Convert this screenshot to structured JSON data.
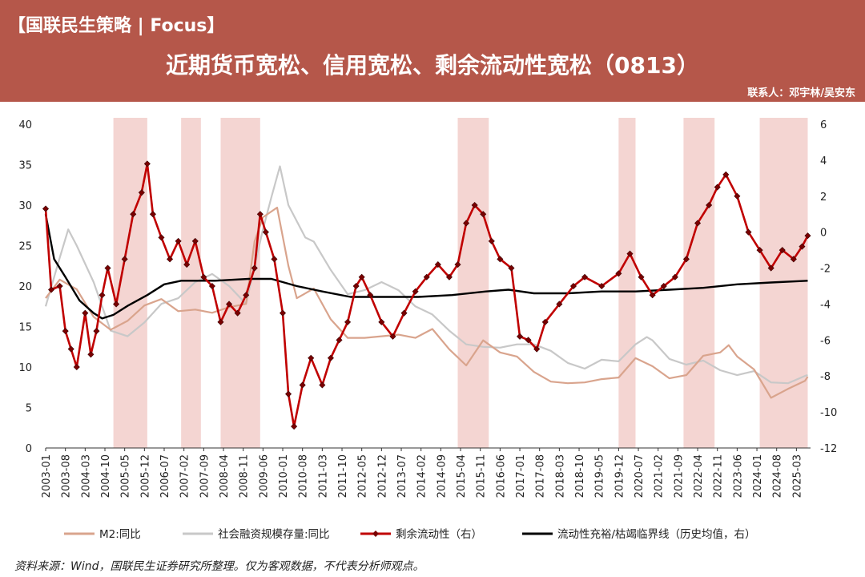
{
  "header": {
    "brand": "【国联民生策略 | Focus】",
    "title": "近期货币宽松、信用宽松、剩余流动性宽松（0813）",
    "contact": "联系人：邓宇林/吴安东"
  },
  "source_note": "资料来源：Wind，国联民生证券研究所整理。仅为客观数据，不代表分析师观点。",
  "colors": {
    "header_bg": "#b5574a",
    "m2": "#d9a48d",
    "social_financing": "#c8c8c8",
    "surplus_liquidity": "#c00000",
    "threshold": "#000000",
    "shade": "#f4d5d2"
  },
  "chart_data": {
    "type": "line",
    "x_tick_labels": [
      "2003-01",
      "2003-08",
      "2004-03",
      "2004-10",
      "2005-05",
      "2005-12",
      "2006-07",
      "2007-02",
      "2007-09",
      "2008-04",
      "2008-11",
      "2009-06",
      "2010-01",
      "2010-08",
      "2011-03",
      "2011-10",
      "2012-05",
      "2012-12",
      "2013-07",
      "2014-02",
      "2014-09",
      "2015-04",
      "2015-11",
      "2016-06",
      "2017-01",
      "2017-08",
      "2018-03",
      "2018-10",
      "2019-05",
      "2019-12",
      "2020-07",
      "2021-02",
      "2021-09",
      "2022-04",
      "2022-11",
      "2023-06",
      "2024-01",
      "2024-08",
      "2025-03"
    ],
    "y_left": {
      "min": 0,
      "max": 40,
      "ticks": [
        0,
        5,
        10,
        15,
        20,
        25,
        30,
        35,
        40
      ]
    },
    "y_right": {
      "min": -12,
      "max": 6,
      "ticks": [
        -12,
        -10,
        -8,
        -6,
        -4,
        -2,
        0,
        2,
        4,
        6
      ]
    },
    "shaded_periods": [
      [
        "2005-01",
        "2006-01"
      ],
      [
        "2007-01",
        "2007-08"
      ],
      [
        "2008-03",
        "2009-05"
      ],
      [
        "2015-03",
        "2016-02"
      ],
      [
        "2019-12",
        "2020-06"
      ],
      [
        "2021-11",
        "2022-10"
      ],
      [
        "2024-02",
        "2025-07"
      ]
    ],
    "series": [
      {
        "name": "M2:同比",
        "axis": "left",
        "points": [
          [
            "2003-01",
            18.5
          ],
          [
            "2003-06",
            20.8
          ],
          [
            "2003-12",
            19.6
          ],
          [
            "2004-06",
            16.2
          ],
          [
            "2004-12",
            14.6
          ],
          [
            "2005-06",
            15.7
          ],
          [
            "2005-12",
            17.6
          ],
          [
            "2006-06",
            18.4
          ],
          [
            "2006-12",
            16.9
          ],
          [
            "2007-06",
            17.1
          ],
          [
            "2007-12",
            16.7
          ],
          [
            "2008-06",
            17.4
          ],
          [
            "2008-12",
            17.8
          ],
          [
            "2009-03",
            25.5
          ],
          [
            "2009-06",
            28.5
          ],
          [
            "2009-11",
            29.7
          ],
          [
            "2010-03",
            22.5
          ],
          [
            "2010-06",
            18.5
          ],
          [
            "2010-12",
            19.7
          ],
          [
            "2011-06",
            15.9
          ],
          [
            "2011-12",
            13.6
          ],
          [
            "2012-06",
            13.6
          ],
          [
            "2012-12",
            13.8
          ],
          [
            "2013-06",
            14.0
          ],
          [
            "2013-12",
            13.6
          ],
          [
            "2014-06",
            14.7
          ],
          [
            "2014-12",
            12.2
          ],
          [
            "2015-06",
            10.2
          ],
          [
            "2015-12",
            13.3
          ],
          [
            "2016-06",
            11.8
          ],
          [
            "2016-12",
            11.3
          ],
          [
            "2017-06",
            9.4
          ],
          [
            "2017-12",
            8.2
          ],
          [
            "2018-06",
            8.0
          ],
          [
            "2018-12",
            8.1
          ],
          [
            "2019-06",
            8.5
          ],
          [
            "2019-12",
            8.7
          ],
          [
            "2020-06",
            11.1
          ],
          [
            "2020-12",
            10.1
          ],
          [
            "2021-06",
            8.6
          ],
          [
            "2021-12",
            9.0
          ],
          [
            "2022-06",
            11.4
          ],
          [
            "2022-12",
            11.8
          ],
          [
            "2023-03",
            12.7
          ],
          [
            "2023-06",
            11.3
          ],
          [
            "2023-12",
            9.7
          ],
          [
            "2024-06",
            6.2
          ],
          [
            "2024-12",
            7.3
          ],
          [
            "2025-06",
            8.3
          ],
          [
            "2025-07",
            8.8
          ]
        ]
      },
      {
        "name": "社会融资规模存量:同比",
        "axis": "left",
        "points": [
          [
            "2003-01",
            17.5
          ],
          [
            "2003-06",
            23.5
          ],
          [
            "2003-09",
            27.0
          ],
          [
            "2003-12",
            25.0
          ],
          [
            "2004-06",
            20.5
          ],
          [
            "2004-12",
            14.5
          ],
          [
            "2005-06",
            13.8
          ],
          [
            "2005-12",
            15.5
          ],
          [
            "2006-06",
            17.8
          ],
          [
            "2006-12",
            18.5
          ],
          [
            "2007-06",
            20.5
          ],
          [
            "2007-12",
            21.5
          ],
          [
            "2008-06",
            20.0
          ],
          [
            "2008-12",
            17.8
          ],
          [
            "2009-06",
            27.0
          ],
          [
            "2009-09",
            31.0
          ],
          [
            "2009-12",
            34.8
          ],
          [
            "2010-03",
            30.0
          ],
          [
            "2010-09",
            26.0
          ],
          [
            "2010-12",
            25.5
          ],
          [
            "2011-06",
            22.0
          ],
          [
            "2011-12",
            19.0
          ],
          [
            "2012-06",
            19.5
          ],
          [
            "2012-12",
            20.5
          ],
          [
            "2013-06",
            19.5
          ],
          [
            "2013-12",
            17.5
          ],
          [
            "2014-06",
            16.5
          ],
          [
            "2014-12",
            14.5
          ],
          [
            "2015-06",
            12.8
          ],
          [
            "2015-12",
            12.5
          ],
          [
            "2016-06",
            12.4
          ],
          [
            "2016-12",
            12.8
          ],
          [
            "2017-06",
            12.8
          ],
          [
            "2017-12",
            12.0
          ],
          [
            "2018-06",
            10.5
          ],
          [
            "2018-12",
            9.8
          ],
          [
            "2019-06",
            10.9
          ],
          [
            "2019-12",
            10.7
          ],
          [
            "2020-06",
            12.8
          ],
          [
            "2020-10",
            13.7
          ],
          [
            "2020-12",
            13.3
          ],
          [
            "2021-06",
            11.0
          ],
          [
            "2021-12",
            10.3
          ],
          [
            "2022-06",
            10.8
          ],
          [
            "2022-12",
            9.6
          ],
          [
            "2023-06",
            9.0
          ],
          [
            "2023-12",
            9.5
          ],
          [
            "2024-06",
            8.1
          ],
          [
            "2024-12",
            8.0
          ],
          [
            "2025-06",
            8.9
          ],
          [
            "2025-07",
            9.0
          ]
        ]
      },
      {
        "name": "剩余流动性（右）",
        "axis": "right",
        "points": [
          [
            "2003-01",
            1.3
          ],
          [
            "2003-03",
            -3.2
          ],
          [
            "2003-06",
            -3.0
          ],
          [
            "2003-08",
            -5.5
          ],
          [
            "2003-10",
            -6.5
          ],
          [
            "2003-12",
            -7.5
          ],
          [
            "2004-03",
            -4.5
          ],
          [
            "2004-05",
            -6.8
          ],
          [
            "2004-07",
            -5.5
          ],
          [
            "2004-09",
            -3.5
          ],
          [
            "2004-11",
            -2.0
          ],
          [
            "2005-02",
            -4.0
          ],
          [
            "2005-05",
            -1.5
          ],
          [
            "2005-08",
            1.0
          ],
          [
            "2005-11",
            2.2
          ],
          [
            "2006-01",
            3.8
          ],
          [
            "2006-03",
            1.0
          ],
          [
            "2006-06",
            -0.3
          ],
          [
            "2006-09",
            -1.5
          ],
          [
            "2006-12",
            -0.5
          ],
          [
            "2007-03",
            -1.8
          ],
          [
            "2007-06",
            -0.5
          ],
          [
            "2007-09",
            -2.5
          ],
          [
            "2007-12",
            -3.0
          ],
          [
            "2008-03",
            -5.0
          ],
          [
            "2008-06",
            -4.0
          ],
          [
            "2008-09",
            -4.5
          ],
          [
            "2008-12",
            -3.5
          ],
          [
            "2009-03",
            -2.0
          ],
          [
            "2009-05",
            1.0
          ],
          [
            "2009-07",
            0.0
          ],
          [
            "2009-10",
            -1.5
          ],
          [
            "2010-01",
            -4.5
          ],
          [
            "2010-03",
            -9.0
          ],
          [
            "2010-05",
            -10.8
          ],
          [
            "2010-08",
            -8.5
          ],
          [
            "2010-11",
            -7.0
          ],
          [
            "2011-03",
            -8.5
          ],
          [
            "2011-06",
            -7.0
          ],
          [
            "2011-09",
            -6.0
          ],
          [
            "2011-12",
            -5.0
          ],
          [
            "2012-03",
            -3.0
          ],
          [
            "2012-05",
            -2.5
          ],
          [
            "2012-08",
            -3.5
          ],
          [
            "2012-12",
            -5.0
          ],
          [
            "2013-04",
            -5.8
          ],
          [
            "2013-08",
            -4.5
          ],
          [
            "2013-12",
            -3.3
          ],
          [
            "2014-04",
            -2.5
          ],
          [
            "2014-08",
            -1.8
          ],
          [
            "2014-12",
            -2.5
          ],
          [
            "2015-03",
            -1.8
          ],
          [
            "2015-06",
            0.5
          ],
          [
            "2015-09",
            1.5
          ],
          [
            "2015-12",
            1.0
          ],
          [
            "2016-03",
            -0.5
          ],
          [
            "2016-06",
            -1.5
          ],
          [
            "2016-10",
            -2.0
          ],
          [
            "2017-01",
            -5.8
          ],
          [
            "2017-04",
            -6.0
          ],
          [
            "2017-07",
            -6.5
          ],
          [
            "2017-10",
            -5.0
          ],
          [
            "2018-03",
            -4.0
          ],
          [
            "2018-08",
            -3.0
          ],
          [
            "2018-12",
            -2.5
          ],
          [
            "2019-06",
            -3.0
          ],
          [
            "2019-12",
            -2.3
          ],
          [
            "2020-04",
            -1.2
          ],
          [
            "2020-08",
            -2.5
          ],
          [
            "2020-12",
            -3.5
          ],
          [
            "2021-04",
            -3.0
          ],
          [
            "2021-08",
            -2.5
          ],
          [
            "2021-12",
            -1.5
          ],
          [
            "2022-04",
            0.5
          ],
          [
            "2022-08",
            1.5
          ],
          [
            "2022-11",
            2.5
          ],
          [
            "2023-02",
            3.2
          ],
          [
            "2023-06",
            2.0
          ],
          [
            "2023-10",
            0.0
          ],
          [
            "2024-02",
            -1.0
          ],
          [
            "2024-06",
            -2.0
          ],
          [
            "2024-10",
            -1.0
          ],
          [
            "2025-02",
            -1.5
          ],
          [
            "2025-05",
            -0.8
          ],
          [
            "2025-07",
            -0.2
          ]
        ]
      },
      {
        "name": "流动性充裕/枯竭临界线（历史均值，右）",
        "axis": "right",
        "points": [
          [
            "2003-01",
            1.0
          ],
          [
            "2003-04",
            -1.5
          ],
          [
            "2003-08",
            -2.5
          ],
          [
            "2004-01",
            -3.8
          ],
          [
            "2004-06",
            -4.5
          ],
          [
            "2004-09",
            -4.8
          ],
          [
            "2005-01",
            -4.6
          ],
          [
            "2005-06",
            -4.1
          ],
          [
            "2006-01",
            -3.5
          ],
          [
            "2006-07",
            -2.9
          ],
          [
            "2007-01",
            -2.7
          ],
          [
            "2008-01",
            -2.7
          ],
          [
            "2009-01",
            -2.6
          ],
          [
            "2009-09",
            -2.6
          ],
          [
            "2010-06",
            -3.0
          ],
          [
            "2011-03",
            -3.3
          ],
          [
            "2012-01",
            -3.6
          ],
          [
            "2013-01",
            -3.6
          ],
          [
            "2014-01",
            -3.6
          ],
          [
            "2015-01",
            -3.5
          ],
          [
            "2016-01",
            -3.3
          ],
          [
            "2016-09",
            -3.2
          ],
          [
            "2017-06",
            -3.4
          ],
          [
            "2018-06",
            -3.4
          ],
          [
            "2019-06",
            -3.3
          ],
          [
            "2020-06",
            -3.3
          ],
          [
            "2021-06",
            -3.2
          ],
          [
            "2022-06",
            -3.1
          ],
          [
            "2023-06",
            -2.9
          ],
          [
            "2024-06",
            -2.8
          ],
          [
            "2025-07",
            -2.7
          ]
        ]
      }
    ],
    "legend": [
      "M2:同比",
      "社会融资规模存量:同比",
      "剩余流动性（右）",
      "流动性充裕/枯竭临界线（历史均值，右）"
    ],
    "legend_position": "bottom"
  }
}
